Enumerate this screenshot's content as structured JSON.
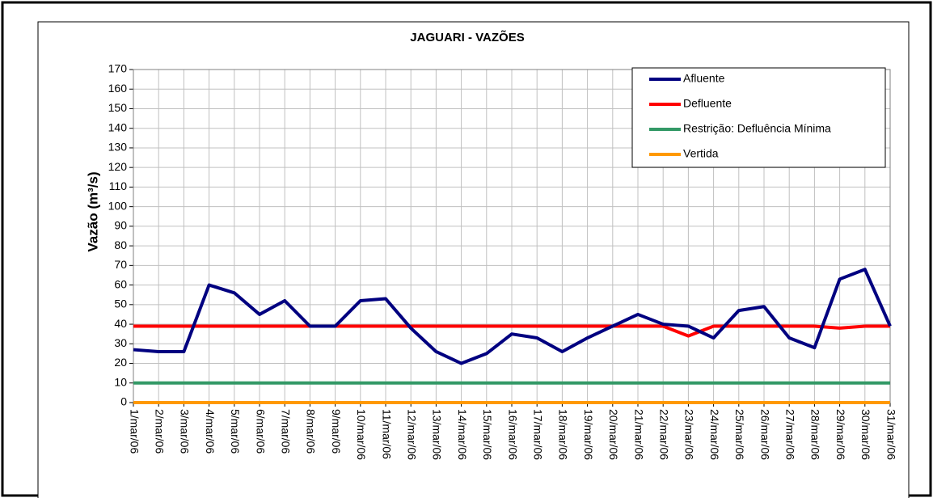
{
  "chart_data": {
    "type": "line",
    "title": "JAGUARI - VAZÕES",
    "y_label": "Vazão (m³/s)",
    "categories": [
      "1/mar/06",
      "2/mar/06",
      "3/mar/06",
      "4/mar/06",
      "5/mar/06",
      "6/mar/06",
      "7/mar/06",
      "8/mar/06",
      "9/mar/06",
      "10/mar/06",
      "11/mar/06",
      "12/mar/06",
      "13/mar/06",
      "14/mar/06",
      "15/mar/06",
      "16/mar/06",
      "17/mar/06",
      "18/mar/06",
      "19/mar/06",
      "20/mar/06",
      "21/mar/06",
      "22/mar/06",
      "23/mar/06",
      "24/mar/06",
      "25/mar/06",
      "26/mar/06",
      "27/mar/06",
      "28/mar/06",
      "29/mar/06",
      "30/mar/06",
      "31/mar/06"
    ],
    "series": [
      {
        "name": "Afluente",
        "color": "#000080",
        "values": [
          27,
          26,
          26,
          60,
          56,
          45,
          52,
          39,
          39,
          52,
          53,
          38,
          26,
          20,
          25,
          35,
          33,
          26,
          33,
          39,
          45,
          40,
          39,
          33,
          47,
          49,
          33,
          28,
          63,
          68,
          39
        ]
      },
      {
        "name": "Defluente",
        "color": "#ff0000",
        "values": [
          39,
          39,
          39,
          39,
          39,
          39,
          39,
          39,
          39,
          39,
          39,
          39,
          39,
          39,
          39,
          39,
          39,
          39,
          39,
          39,
          39,
          39,
          34,
          39,
          39,
          39,
          39,
          39,
          38,
          39,
          39
        ]
      },
      {
        "name": "Restrição: Defluência Mínima",
        "color": "#339966",
        "values": [
          10,
          10,
          10,
          10,
          10,
          10,
          10,
          10,
          10,
          10,
          10,
          10,
          10,
          10,
          10,
          10,
          10,
          10,
          10,
          10,
          10,
          10,
          10,
          10,
          10,
          10,
          10,
          10,
          10,
          10,
          10
        ]
      },
      {
        "name": "Vertida",
        "color": "#ff9900",
        "values": [
          0,
          0,
          0,
          0,
          0,
          0,
          0,
          0,
          0,
          0,
          0,
          0,
          0,
          0,
          0,
          0,
          0,
          0,
          0,
          0,
          0,
          0,
          0,
          0,
          0,
          0,
          0,
          0,
          0,
          0,
          0
        ]
      }
    ],
    "ylim": [
      0,
      170
    ],
    "yticks": [
      0,
      10,
      20,
      30,
      40,
      50,
      60,
      70,
      80,
      90,
      100,
      110,
      120,
      130,
      140,
      150,
      160,
      170
    ],
    "grid": true,
    "legend": "upper right"
  }
}
